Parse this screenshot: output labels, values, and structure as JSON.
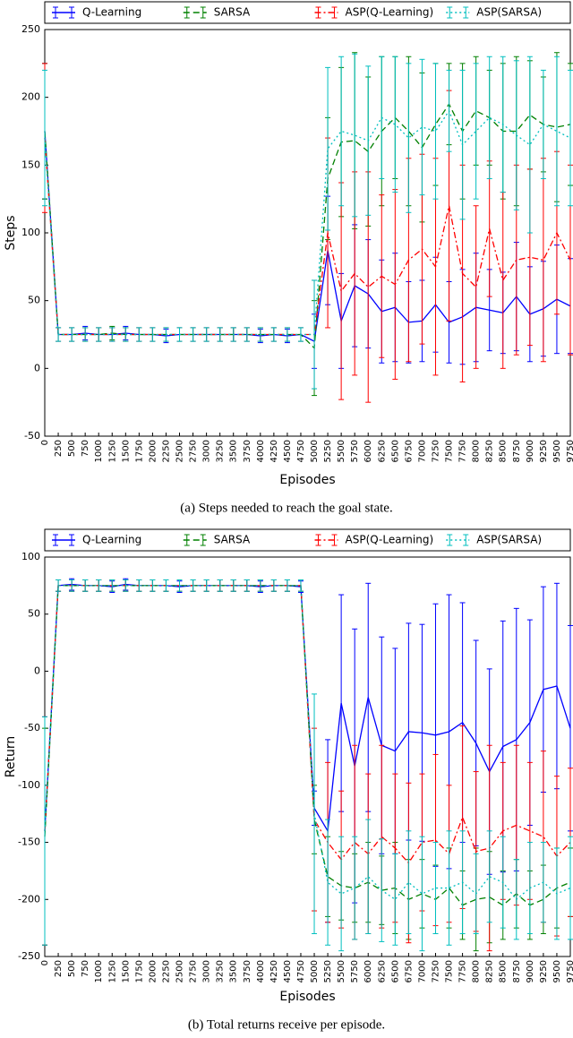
{
  "chart_data": [
    {
      "type": "line",
      "caption": "(a) Steps needed to reach the goal state.",
      "xlabel": "Episodes",
      "ylabel": "Steps",
      "x": [
        0,
        250,
        500,
        750,
        1000,
        1250,
        1500,
        1750,
        2000,
        2250,
        2500,
        2750,
        3000,
        3250,
        3500,
        3750,
        4000,
        4250,
        4500,
        4750,
        5000,
        5250,
        5500,
        5750,
        6000,
        6250,
        6500,
        6750,
        7000,
        7250,
        7500,
        7750,
        8000,
        8250,
        8500,
        8750,
        9000,
        9250,
        9500,
        9750
      ],
      "xlim": [
        0,
        9750
      ],
      "xticks": [
        0,
        250,
        500,
        750,
        1000,
        1250,
        1500,
        1750,
        2000,
        2250,
        2500,
        2750,
        3000,
        3250,
        3500,
        3750,
        4000,
        4250,
        4500,
        4750,
        5000,
        5250,
        5500,
        5750,
        6000,
        6250,
        6500,
        6750,
        7000,
        7250,
        7500,
        7750,
        8000,
        8250,
        8500,
        8750,
        9000,
        9250,
        9500,
        9750
      ],
      "ylim": [
        -50,
        250
      ],
      "yticks": [
        -50,
        0,
        50,
        100,
        150,
        200,
        250
      ],
      "legend": "top",
      "series": [
        {
          "name": "Q-Learning",
          "color": "#0000ff",
          "style": "solid",
          "values": [
            175,
            25,
            25,
            26,
            25,
            25,
            26,
            25,
            25,
            24,
            25,
            25,
            25,
            25,
            25,
            25,
            24,
            25,
            24,
            25,
            20,
            87,
            35,
            61,
            55,
            42,
            45,
            34,
            35,
            47,
            34,
            38,
            45,
            43,
            41,
            53,
            40,
            44,
            51,
            46
          ],
          "errors": [
            50,
            5,
            5,
            5,
            5,
            5,
            5,
            5,
            5,
            5,
            5,
            5,
            5,
            5,
            5,
            5,
            5,
            5,
            5,
            5,
            20,
            40,
            35,
            45,
            40,
            38,
            40,
            30,
            30,
            35,
            30,
            35,
            40,
            30,
            30,
            40,
            35,
            35,
            40,
            35
          ]
        },
        {
          "name": "SARSA",
          "color": "#008000",
          "style": "dashed",
          "values": [
            175,
            25,
            25,
            25,
            25,
            26,
            25,
            25,
            25,
            25,
            25,
            25,
            25,
            25,
            25,
            25,
            25,
            25,
            25,
            25,
            15,
            140,
            167,
            168,
            160,
            175,
            185,
            175,
            163,
            180,
            195,
            175,
            190,
            185,
            175,
            175,
            187,
            180,
            178,
            180
          ],
          "errors": [
            50,
            5,
            5,
            5,
            5,
            5,
            5,
            5,
            5,
            5,
            5,
            5,
            5,
            5,
            5,
            5,
            5,
            5,
            5,
            5,
            35,
            45,
            55,
            65,
            55,
            55,
            45,
            55,
            55,
            45,
            30,
            50,
            40,
            35,
            50,
            55,
            40,
            35,
            55,
            45
          ]
        },
        {
          "name": "ASP(Q-Learning)",
          "color": "#ff0000",
          "style": "dashdot",
          "values": [
            170,
            25,
            25,
            25,
            25,
            25,
            25,
            25,
            25,
            25,
            25,
            25,
            25,
            25,
            25,
            25,
            25,
            25,
            25,
            25,
            25,
            100,
            57,
            70,
            60,
            68,
            62,
            80,
            88,
            75,
            120,
            70,
            60,
            103,
            65,
            80,
            82,
            80,
            100,
            80
          ],
          "errors": [
            55,
            5,
            5,
            5,
            5,
            5,
            5,
            5,
            5,
            5,
            5,
            5,
            5,
            5,
            5,
            5,
            5,
            5,
            5,
            5,
            40,
            70,
            80,
            75,
            85,
            60,
            70,
            75,
            70,
            80,
            85,
            80,
            60,
            50,
            65,
            70,
            65,
            75,
            60,
            70
          ]
        },
        {
          "name": "ASP(SARSA)",
          "color": "#00bfbf",
          "style": "dotted",
          "values": [
            170,
            25,
            25,
            25,
            25,
            25,
            25,
            25,
            25,
            25,
            25,
            25,
            25,
            25,
            25,
            25,
            25,
            25,
            25,
            25,
            25,
            162,
            175,
            172,
            168,
            185,
            180,
            170,
            178,
            175,
            190,
            165,
            175,
            185,
            180,
            172,
            165,
            180,
            175,
            170
          ],
          "errors": [
            50,
            5,
            5,
            5,
            5,
            5,
            5,
            5,
            5,
            5,
            5,
            5,
            5,
            5,
            5,
            5,
            5,
            5,
            5,
            5,
            40,
            60,
            55,
            60,
            55,
            45,
            50,
            55,
            50,
            50,
            30,
            55,
            50,
            45,
            50,
            55,
            65,
            40,
            55,
            50
          ]
        }
      ]
    },
    {
      "type": "line",
      "caption": "(b) Total returns receive per episode.",
      "xlabel": "Episodes",
      "ylabel": "Return",
      "x": [
        0,
        250,
        500,
        750,
        1000,
        1250,
        1500,
        1750,
        2000,
        2250,
        2500,
        2750,
        3000,
        3250,
        3500,
        3750,
        4000,
        4250,
        4500,
        4750,
        5000,
        5250,
        5500,
        5750,
        6000,
        6250,
        6500,
        6750,
        7000,
        7250,
        7500,
        7750,
        8000,
        8250,
        8500,
        8750,
        9000,
        9250,
        9500,
        9750
      ],
      "xlim": [
        0,
        9750
      ],
      "xticks": [
        0,
        250,
        500,
        750,
        1000,
        1250,
        1500,
        1750,
        2000,
        2250,
        2500,
        2750,
        3000,
        3250,
        3500,
        3750,
        4000,
        4250,
        4500,
        4750,
        5000,
        5250,
        5500,
        5750,
        6000,
        6250,
        6500,
        6750,
        7000,
        7250,
        7500,
        7750,
        8000,
        8250,
        8500,
        8750,
        9000,
        9250,
        9500,
        9750
      ],
      "ylim": [
        -250,
        100
      ],
      "yticks": [
        -250,
        -200,
        -150,
        -100,
        -50,
        0,
        50,
        100
      ],
      "legend": "top",
      "series": [
        {
          "name": "Q-Learning",
          "color": "#0000ff",
          "style": "solid",
          "values": [
            -140,
            75,
            76,
            75,
            75,
            74,
            76,
            75,
            75,
            75,
            74,
            75,
            75,
            75,
            75,
            75,
            74,
            75,
            75,
            74,
            -120,
            -140,
            -28,
            -83,
            -23,
            -65,
            -70,
            -53,
            -54,
            -56,
            -53,
            -45,
            -63,
            -88,
            -66,
            -60,
            -45,
            -16,
            -13,
            -50
          ],
          "errors": [
            100,
            5,
            5,
            5,
            5,
            5,
            5,
            5,
            5,
            5,
            5,
            5,
            5,
            5,
            5,
            5,
            5,
            5,
            5,
            5,
            15,
            80,
            95,
            120,
            100,
            95,
            90,
            95,
            95,
            115,
            120,
            105,
            90,
            90,
            110,
            115,
            90,
            90,
            90,
            90
          ]
        },
        {
          "name": "SARSA",
          "color": "#008000",
          "style": "dashed",
          "values": [
            -145,
            75,
            75,
            75,
            75,
            75,
            75,
            75,
            75,
            75,
            75,
            75,
            75,
            75,
            75,
            75,
            75,
            75,
            75,
            75,
            -130,
            -180,
            -188,
            -190,
            -185,
            -192,
            -190,
            -200,
            -195,
            -200,
            -190,
            -205,
            -200,
            -198,
            -205,
            -195,
            -205,
            -200,
            -190,
            -185
          ],
          "errors": [
            95,
            5,
            5,
            5,
            5,
            5,
            5,
            5,
            5,
            5,
            5,
            5,
            5,
            5,
            5,
            5,
            5,
            5,
            5,
            5,
            30,
            35,
            30,
            30,
            35,
            30,
            40,
            35,
            30,
            30,
            35,
            30,
            45,
            40,
            30,
            30,
            30,
            30,
            35,
            30
          ]
        },
        {
          "name": "ASP(Q-Learning)",
          "color": "#ff0000",
          "style": "dashdot",
          "values": [
            -140,
            75,
            75,
            75,
            75,
            75,
            75,
            75,
            75,
            75,
            75,
            75,
            75,
            75,
            75,
            75,
            75,
            75,
            75,
            75,
            -130,
            -150,
            -165,
            -150,
            -160,
            -145,
            -155,
            -168,
            -150,
            -148,
            -160,
            -128,
            -158,
            -155,
            -140,
            -135,
            -140,
            -145,
            -162,
            -150
          ],
          "errors": [
            100,
            5,
            5,
            5,
            5,
            5,
            5,
            5,
            5,
            5,
            5,
            5,
            5,
            5,
            5,
            5,
            5,
            5,
            5,
            5,
            80,
            70,
            60,
            85,
            70,
            80,
            65,
            70,
            60,
            75,
            60,
            80,
            70,
            90,
            60,
            70,
            60,
            75,
            70,
            65
          ]
        },
        {
          "name": "ASP(SARSA)",
          "color": "#00bfbf",
          "style": "dotted",
          "values": [
            -140,
            75,
            75,
            75,
            75,
            75,
            75,
            75,
            75,
            75,
            75,
            75,
            75,
            75,
            75,
            75,
            75,
            75,
            75,
            75,
            -125,
            -185,
            -195,
            -190,
            -180,
            -192,
            -200,
            -185,
            -195,
            -190,
            -190,
            -185,
            -195,
            -180,
            -185,
            -200,
            -190,
            -185,
            -195,
            -190
          ],
          "errors": [
            100,
            5,
            5,
            5,
            5,
            5,
            5,
            5,
            5,
            5,
            5,
            5,
            5,
            5,
            5,
            5,
            5,
            5,
            5,
            5,
            105,
            55,
            50,
            45,
            50,
            45,
            40,
            45,
            50,
            40,
            50,
            45,
            35,
            40,
            40,
            35,
            40,
            35,
            40,
            45
          ]
        }
      ]
    }
  ]
}
